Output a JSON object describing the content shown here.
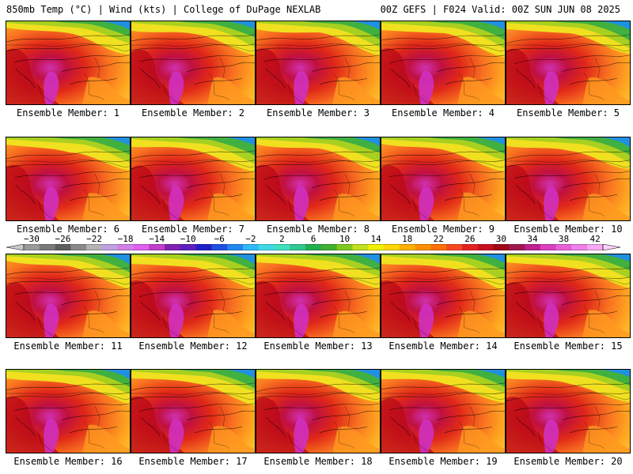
{
  "header": {
    "title_left": "850mb Temp (°C) | Wind (kts) | College of DuPage NEXLAB",
    "title_right": "00Z GEFS | F024 Valid: 00Z SUN JUN 08 2025"
  },
  "members": [
    "Ensemble Member: 1",
    "Ensemble Member: 2",
    "Ensemble Member: 3",
    "Ensemble Member: 4",
    "Ensemble Member: 5",
    "Ensemble Member: 6",
    "Ensemble Member: 7",
    "Ensemble Member: 8",
    "Ensemble Member: 9",
    "Ensemble Member: 10",
    "Ensemble Member: 11",
    "Ensemble Member: 12",
    "Ensemble Member: 13",
    "Ensemble Member: 14",
    "Ensemble Member: 15",
    "Ensemble Member: 16",
    "Ensemble Member: 17",
    "Ensemble Member: 18",
    "Ensemble Member: 19",
    "Ensemble Member: 20"
  ],
  "colorbar": {
    "ticks": [
      "−30",
      "−26",
      "−22",
      "−18",
      "−14",
      "−10",
      "−6",
      "−2",
      "2",
      "6",
      "10",
      "14",
      "18",
      "22",
      "26",
      "30",
      "34",
      "38",
      "42"
    ],
    "colors": [
      "#c8c8c8",
      "#9a9a9a",
      "#7a7a7a",
      "#5e5e5e",
      "#8a8a8a",
      "#b4b4b4",
      "#c0a0e0",
      "#d080e8",
      "#e060f0",
      "#c040c8",
      "#8020b0",
      "#6020c0",
      "#2020c8",
      "#2050e0",
      "#2088f0",
      "#30b8f8",
      "#40d8e8",
      "#40e0c0",
      "#30c890",
      "#20b050",
      "#40b030",
      "#80c820",
      "#c0e020",
      "#f0f000",
      "#ffd800",
      "#ffb000",
      "#ff9000",
      "#ff7000",
      "#f84820",
      "#e82020",
      "#c81020",
      "#a00818",
      "#a01850",
      "#c02090",
      "#d840c0",
      "#e860d8",
      "#f080e8",
      "#f8a8f0",
      "#fcd0f8"
    ]
  }
}
